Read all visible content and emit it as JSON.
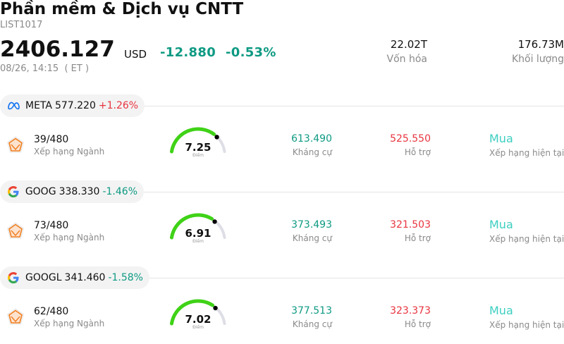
{
  "header": {
    "title": "Phần mềm & Dịch vụ CNTT",
    "code": "LIST1017",
    "price": "2406.127",
    "currency": "USD",
    "change": "-12.880",
    "change_pct": "-0.53%",
    "time": "08/26, 14:15  ( ET )",
    "market_cap": "22.02T",
    "market_cap_label": "Vốn hóa",
    "volume": "176.73M",
    "volume_label": "Khối lượng"
  },
  "colors": {
    "up": "#e8343f",
    "down": "#0e9a83",
    "rating": "#3ccfc0",
    "gauge": "#3fd217"
  },
  "stocks": [
    {
      "logo_icon": "meta-logo-icon",
      "symbol": "META",
      "price": "577.220",
      "change_pct": "+1.26%",
      "direction": "up",
      "rank": "39/480",
      "rank_label": "Xếp hạng Ngành",
      "score": "7.25",
      "score_fraction": 0.725,
      "score_label": "Điểm",
      "resistance": "613.490",
      "resistance_label": "Kháng cự",
      "support": "525.550",
      "support_label": "Hỗ trợ",
      "rating": "Mua",
      "rating_label": "Xếp hạng hiện tại"
    },
    {
      "logo_icon": "google-logo-icon",
      "symbol": "GOOG",
      "price": "338.330",
      "change_pct": "-1.46%",
      "direction": "down",
      "rank": "73/480",
      "rank_label": "Xếp hạng Ngành",
      "score": "6.91",
      "score_fraction": 0.691,
      "score_label": "Điểm",
      "resistance": "373.493",
      "resistance_label": "Kháng cự",
      "support": "321.503",
      "support_label": "Hỗ trợ",
      "rating": "Mua",
      "rating_label": "Xếp hạng hiện tại"
    },
    {
      "logo_icon": "google-logo-icon",
      "symbol": "GOOGL",
      "price": "341.460",
      "change_pct": "-1.58%",
      "direction": "down",
      "rank": "62/480",
      "rank_label": "Xếp hạng Ngành",
      "score": "7.02",
      "score_fraction": 0.702,
      "score_label": "Điểm",
      "resistance": "377.513",
      "resistance_label": "Kháng cự",
      "support": "323.373",
      "support_label": "Hỗ trợ",
      "rating": "Mua",
      "rating_label": "Xếp hạng hiện tại"
    }
  ]
}
